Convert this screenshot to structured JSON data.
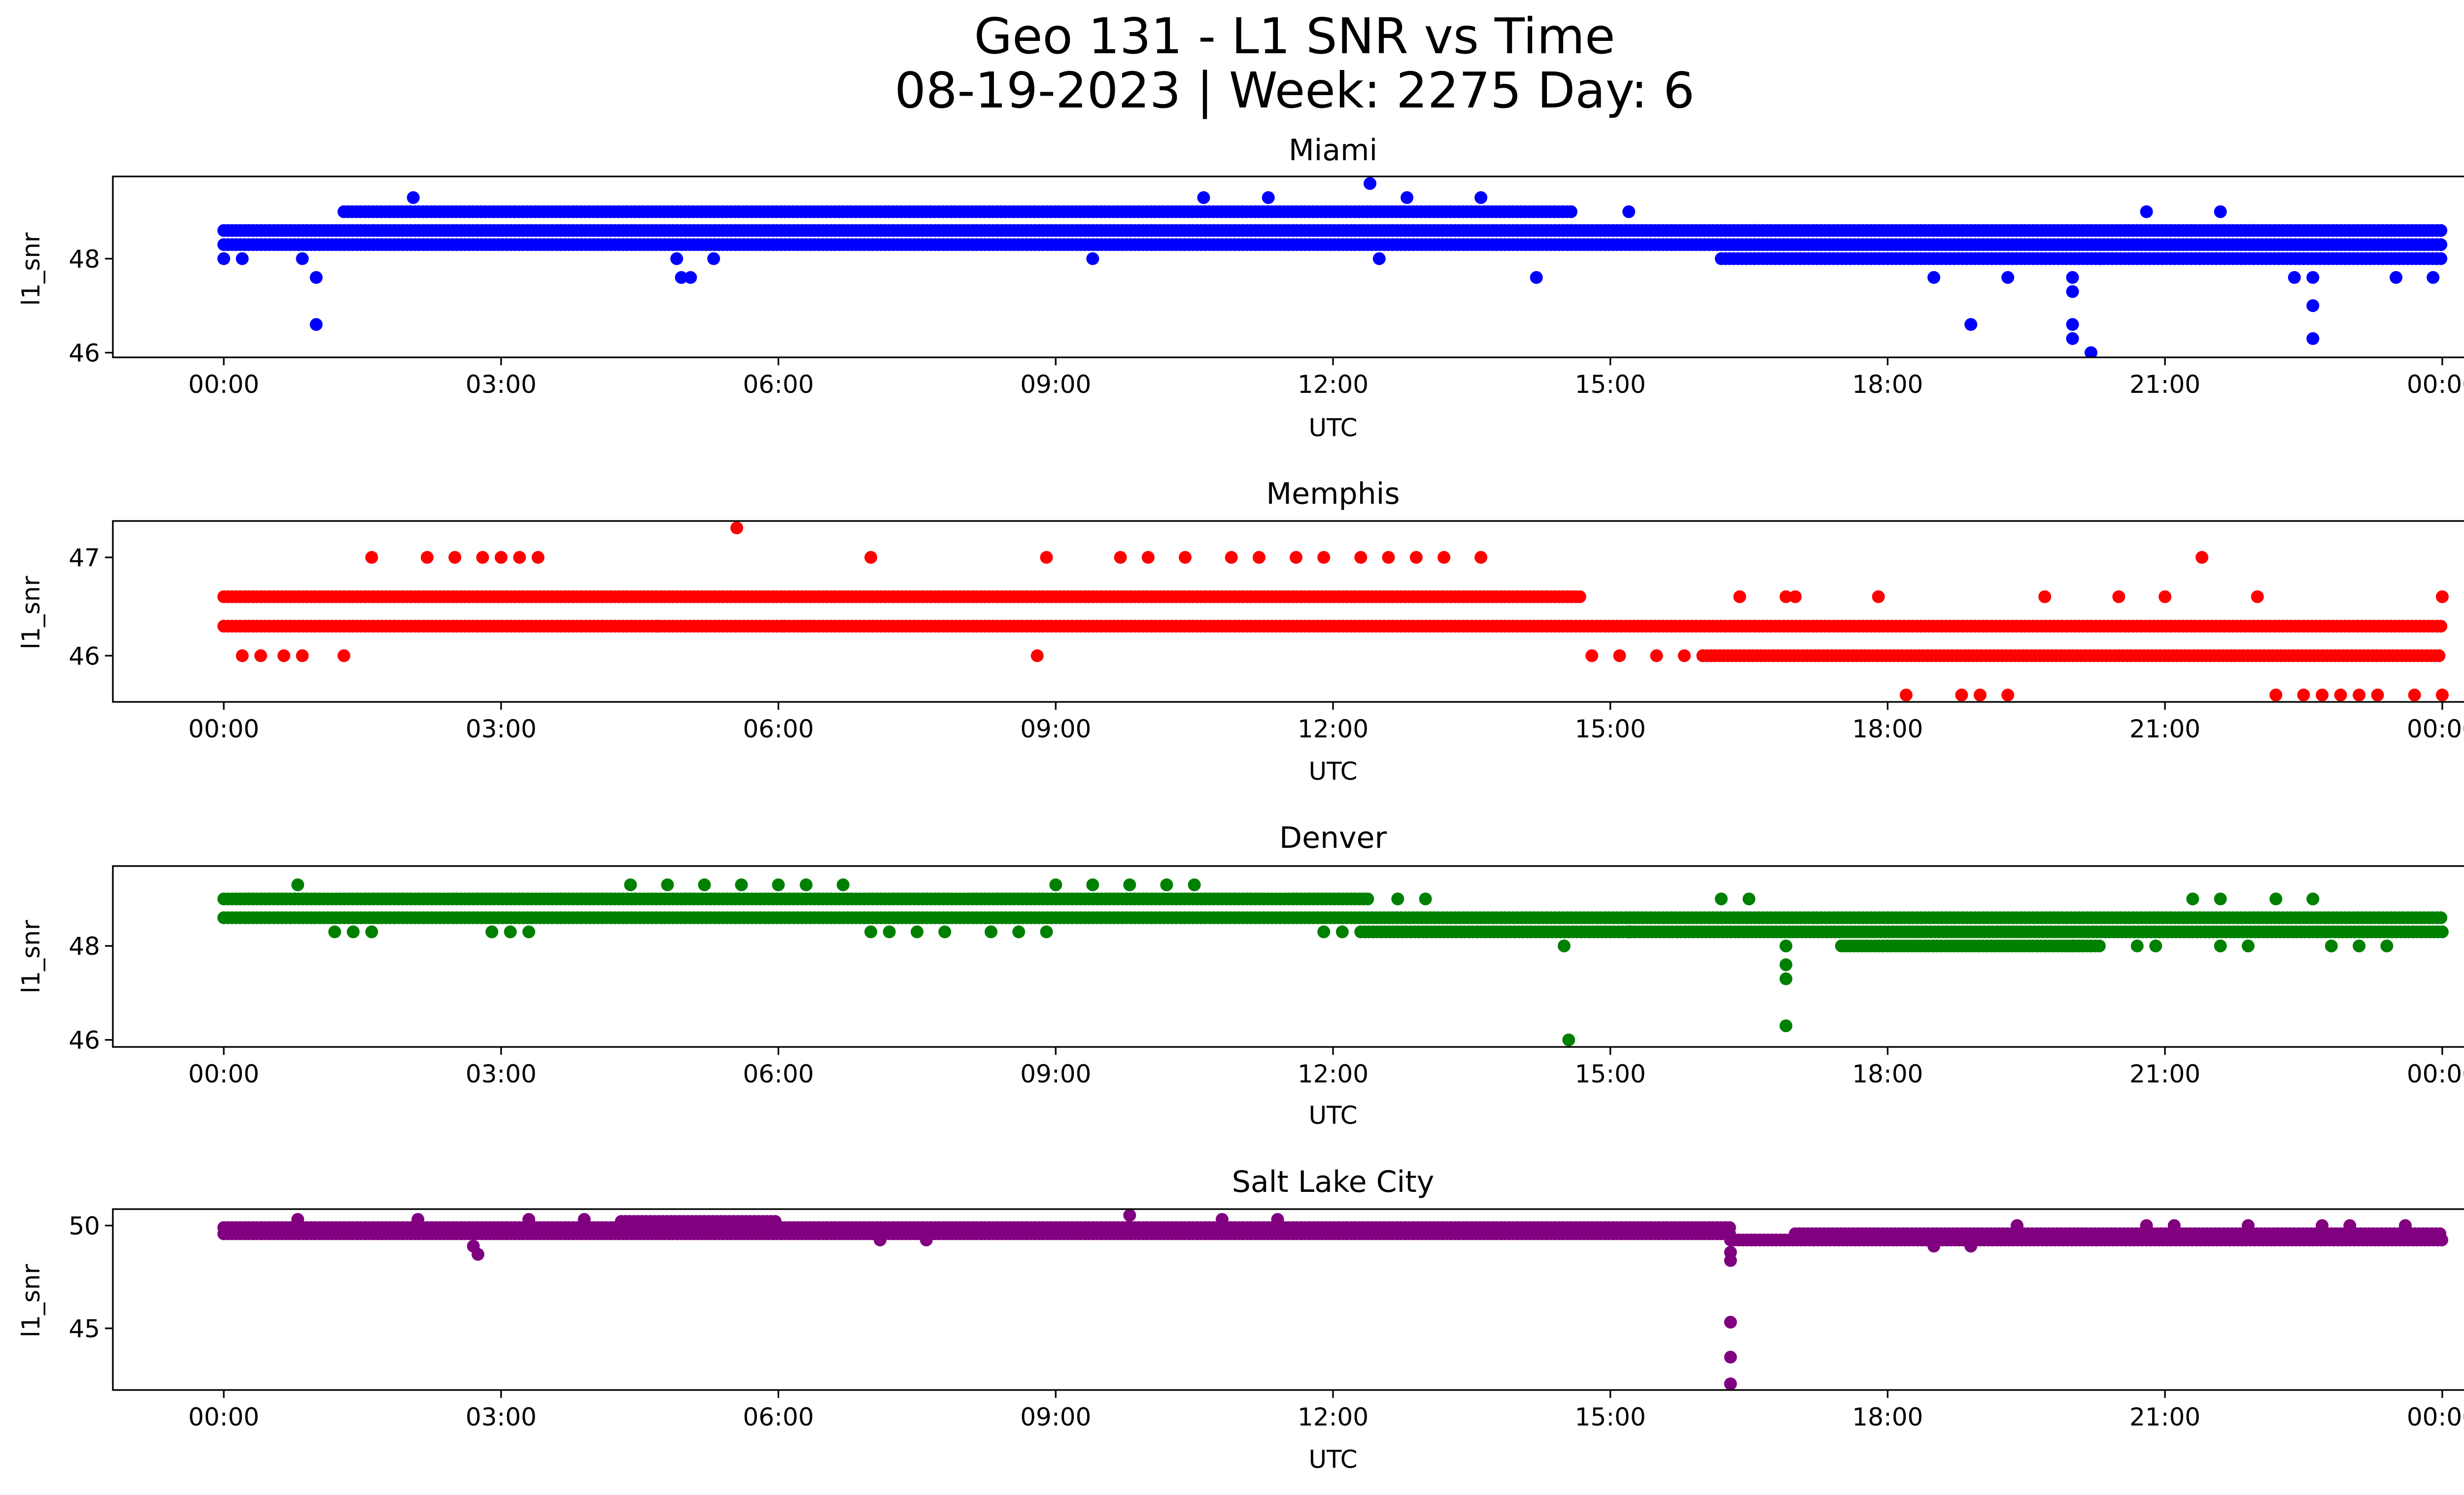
{
  "figure": {
    "title_line1": "Geo 131 - L1 SNR vs Time",
    "title_line2": "08-19-2023 | Week: 2275 Day: 6"
  },
  "chart_data": [
    {
      "type": "scatter",
      "title": "Miami",
      "xlabel": "UTC",
      "ylabel": "l1_snr",
      "color": "#0000ff",
      "x_unit": "hours UTC",
      "xlim": [
        -1.2,
        25.2
      ],
      "ylim": [
        45.9,
        49.75
      ],
      "xticks": [
        "00:00",
        "03:00",
        "06:00",
        "09:00",
        "12:00",
        "15:00",
        "18:00",
        "21:00",
        "00:00"
      ],
      "yticks": [
        46,
        48
      ],
      "bands": [
        {
          "y": 48.6,
          "from": 0.0,
          "to": 24.0
        },
        {
          "y": 48.3,
          "from": 0.0,
          "to": 24.0
        },
        {
          "y": 49.0,
          "from": 1.3,
          "to": 14.6
        },
        {
          "y": 48.0,
          "from": 16.2,
          "to": 24.0
        }
      ],
      "points": [
        {
          "x": 0.0,
          "y": 48.0
        },
        {
          "x": 0.2,
          "y": 48.0
        },
        {
          "x": 0.85,
          "y": 48.0
        },
        {
          "x": 1.0,
          "y": 47.6
        },
        {
          "x": 1.0,
          "y": 46.6
        },
        {
          "x": 2.05,
          "y": 49.3
        },
        {
          "x": 4.95,
          "y": 47.6
        },
        {
          "x": 5.05,
          "y": 47.6
        },
        {
          "x": 4.9,
          "y": 48.0
        },
        {
          "x": 5.3,
          "y": 48.0
        },
        {
          "x": 9.4,
          "y": 48.0
        },
        {
          "x": 10.6,
          "y": 49.3
        },
        {
          "x": 11.3,
          "y": 49.3
        },
        {
          "x": 12.4,
          "y": 49.6
        },
        {
          "x": 12.5,
          "y": 48.0
        },
        {
          "x": 12.8,
          "y": 49.3
        },
        {
          "x": 13.6,
          "y": 49.3
        },
        {
          "x": 14.2,
          "y": 47.6
        },
        {
          "x": 15.2,
          "y": 49.0
        },
        {
          "x": 18.5,
          "y": 47.6
        },
        {
          "x": 18.9,
          "y": 46.6
        },
        {
          "x": 19.3,
          "y": 47.6
        },
        {
          "x": 20.0,
          "y": 47.6
        },
        {
          "x": 20.0,
          "y": 47.3
        },
        {
          "x": 20.0,
          "y": 46.6
        },
        {
          "x": 20.0,
          "y": 46.3
        },
        {
          "x": 20.2,
          "y": 46.0
        },
        {
          "x": 20.3,
          "y": 48.0
        },
        {
          "x": 20.8,
          "y": 49.0
        },
        {
          "x": 21.6,
          "y": 49.0
        },
        {
          "x": 22.4,
          "y": 47.6
        },
        {
          "x": 22.6,
          "y": 47.6
        },
        {
          "x": 22.6,
          "y": 47.0
        },
        {
          "x": 22.6,
          "y": 46.3
        },
        {
          "x": 23.5,
          "y": 47.6
        },
        {
          "x": 23.9,
          "y": 47.6
        }
      ]
    },
    {
      "type": "scatter",
      "title": "Memphis",
      "xlabel": "UTC",
      "ylabel": "l1_snr",
      "color": "#ff0000",
      "x_unit": "hours UTC",
      "xlim": [
        -1.2,
        25.2
      ],
      "ylim": [
        45.53,
        47.37
      ],
      "xticks": [
        "00:00",
        "03:00",
        "06:00",
        "09:00",
        "12:00",
        "15:00",
        "18:00",
        "21:00",
        "00:00"
      ],
      "yticks": [
        46,
        47
      ],
      "bands": [
        {
          "y": 46.6,
          "from": 0.0,
          "to": 14.7
        },
        {
          "y": 46.3,
          "from": 0.0,
          "to": 24.0
        },
        {
          "y": 46.0,
          "from": 16.0,
          "to": 24.0
        }
      ],
      "points": [
        {
          "x": 0.2,
          "y": 46.0
        },
        {
          "x": 0.4,
          "y": 46.0
        },
        {
          "x": 0.65,
          "y": 46.0
        },
        {
          "x": 0.85,
          "y": 46.0
        },
        {
          "x": 1.3,
          "y": 46.0
        },
        {
          "x": 1.6,
          "y": 47.0
        },
        {
          "x": 2.2,
          "y": 47.0
        },
        {
          "x": 2.5,
          "y": 47.0
        },
        {
          "x": 2.8,
          "y": 47.0
        },
        {
          "x": 3.0,
          "y": 47.0
        },
        {
          "x": 3.2,
          "y": 47.0
        },
        {
          "x": 3.4,
          "y": 47.0
        },
        {
          "x": 4.7,
          "y": 46.3
        },
        {
          "x": 5.55,
          "y": 47.3
        },
        {
          "x": 6.05,
          "y": 46.3
        },
        {
          "x": 6.3,
          "y": 46.3
        },
        {
          "x": 7.0,
          "y": 47.0
        },
        {
          "x": 8.8,
          "y": 46.0
        },
        {
          "x": 8.9,
          "y": 47.0
        },
        {
          "x": 9.7,
          "y": 47.0
        },
        {
          "x": 10.0,
          "y": 47.0
        },
        {
          "x": 10.4,
          "y": 47.0
        },
        {
          "x": 10.9,
          "y": 47.0
        },
        {
          "x": 11.2,
          "y": 47.0
        },
        {
          "x": 11.6,
          "y": 47.0
        },
        {
          "x": 11.9,
          "y": 47.0
        },
        {
          "x": 12.3,
          "y": 47.0
        },
        {
          "x": 12.6,
          "y": 47.0
        },
        {
          "x": 12.9,
          "y": 47.0
        },
        {
          "x": 13.2,
          "y": 47.0
        },
        {
          "x": 13.6,
          "y": 47.0
        },
        {
          "x": 14.8,
          "y": 46.0
        },
        {
          "x": 15.1,
          "y": 46.0
        },
        {
          "x": 15.5,
          "y": 46.0
        },
        {
          "x": 15.8,
          "y": 46.0
        },
        {
          "x": 16.4,
          "y": 46.6
        },
        {
          "x": 16.9,
          "y": 46.6
        },
        {
          "x": 17.0,
          "y": 46.6
        },
        {
          "x": 17.9,
          "y": 46.6
        },
        {
          "x": 18.2,
          "y": 45.6
        },
        {
          "x": 18.8,
          "y": 45.6
        },
        {
          "x": 19.0,
          "y": 45.6
        },
        {
          "x": 19.3,
          "y": 45.6
        },
        {
          "x": 19.7,
          "y": 46.6
        },
        {
          "x": 20.5,
          "y": 46.6
        },
        {
          "x": 21.0,
          "y": 46.6
        },
        {
          "x": 21.4,
          "y": 47.0
        },
        {
          "x": 22.0,
          "y": 46.6
        },
        {
          "x": 22.2,
          "y": 45.6
        },
        {
          "x": 22.5,
          "y": 45.6
        },
        {
          "x": 22.7,
          "y": 45.6
        },
        {
          "x": 22.9,
          "y": 45.6
        },
        {
          "x": 23.1,
          "y": 45.6
        },
        {
          "x": 23.3,
          "y": 45.6
        },
        {
          "x": 23.7,
          "y": 45.6
        },
        {
          "x": 24.0,
          "y": 45.6
        },
        {
          "x": 24.0,
          "y": 46.6
        }
      ]
    },
    {
      "type": "scatter",
      "title": "Denver",
      "xlabel": "UTC",
      "ylabel": "l1_snr",
      "color": "#008000",
      "x_unit": "hours UTC",
      "xlim": [
        -1.2,
        25.2
      ],
      "ylim": [
        45.85,
        49.7
      ],
      "xticks": [
        "00:00",
        "03:00",
        "06:00",
        "09:00",
        "12:00",
        "15:00",
        "18:00",
        "21:00",
        "00:00"
      ],
      "yticks": [
        46,
        48
      ],
      "bands": [
        {
          "y": 49.0,
          "from": 0.0,
          "to": 12.4
        },
        {
          "y": 48.6,
          "from": 0.0,
          "to": 24.0
        },
        {
          "y": 48.3,
          "from": 12.3,
          "to": 24.0
        },
        {
          "y": 48.0,
          "from": 17.5,
          "to": 20.3
        }
      ],
      "points": [
        {
          "x": 0.8,
          "y": 49.3
        },
        {
          "x": 1.2,
          "y": 48.3
        },
        {
          "x": 1.4,
          "y": 48.3
        },
        {
          "x": 1.6,
          "y": 48.3
        },
        {
          "x": 2.9,
          "y": 48.3
        },
        {
          "x": 3.1,
          "y": 48.3
        },
        {
          "x": 3.3,
          "y": 48.3
        },
        {
          "x": 4.4,
          "y": 49.3
        },
        {
          "x": 4.8,
          "y": 49.3
        },
        {
          "x": 5.2,
          "y": 49.3
        },
        {
          "x": 5.6,
          "y": 49.3
        },
        {
          "x": 6.0,
          "y": 49.3
        },
        {
          "x": 6.3,
          "y": 49.3
        },
        {
          "x": 6.7,
          "y": 49.3
        },
        {
          "x": 7.0,
          "y": 48.3
        },
        {
          "x": 7.2,
          "y": 48.3
        },
        {
          "x": 7.5,
          "y": 48.3
        },
        {
          "x": 7.8,
          "y": 48.3
        },
        {
          "x": 8.3,
          "y": 48.3
        },
        {
          "x": 8.6,
          "y": 48.3
        },
        {
          "x": 8.9,
          "y": 48.3
        },
        {
          "x": 9.0,
          "y": 49.3
        },
        {
          "x": 9.4,
          "y": 49.3
        },
        {
          "x": 9.8,
          "y": 49.3
        },
        {
          "x": 10.2,
          "y": 49.3
        },
        {
          "x": 10.5,
          "y": 49.3
        },
        {
          "x": 11.9,
          "y": 48.3
        },
        {
          "x": 12.1,
          "y": 48.3
        },
        {
          "x": 12.7,
          "y": 49.0
        },
        {
          "x": 13.0,
          "y": 49.0
        },
        {
          "x": 14.5,
          "y": 48.0
        },
        {
          "x": 14.55,
          "y": 46.0
        },
        {
          "x": 15.2,
          "y": 48.3
        },
        {
          "x": 16.2,
          "y": 49.0
        },
        {
          "x": 16.5,
          "y": 49.0
        },
        {
          "x": 16.9,
          "y": 48.0
        },
        {
          "x": 16.9,
          "y": 47.6
        },
        {
          "x": 16.9,
          "y": 47.3
        },
        {
          "x": 16.9,
          "y": 46.3
        },
        {
          "x": 18.0,
          "y": 48.6
        },
        {
          "x": 20.0,
          "y": 48.0
        },
        {
          "x": 20.7,
          "y": 48.0
        },
        {
          "x": 20.9,
          "y": 48.0
        },
        {
          "x": 21.3,
          "y": 49.0
        },
        {
          "x": 21.6,
          "y": 49.0
        },
        {
          "x": 21.6,
          "y": 48.0
        },
        {
          "x": 21.9,
          "y": 48.0
        },
        {
          "x": 22.2,
          "y": 49.0
        },
        {
          "x": 22.6,
          "y": 49.0
        },
        {
          "x": 22.8,
          "y": 48.0
        },
        {
          "x": 23.1,
          "y": 48.0
        },
        {
          "x": 23.4,
          "y": 48.0
        }
      ]
    },
    {
      "type": "scatter",
      "title": "Salt Lake City",
      "xlabel": "UTC",
      "ylabel": "l1_snr",
      "color": "#800080",
      "x_unit": "hours UTC",
      "xlim": [
        -1.2,
        25.2
      ],
      "ylim": [
        42.0,
        50.8
      ],
      "xticks": [
        "00:00",
        "03:00",
        "06:00",
        "09:00",
        "12:00",
        "15:00",
        "18:00",
        "21:00",
        "00:00"
      ],
      "yticks": [
        45,
        50
      ],
      "bands": [
        {
          "y": 49.6,
          "from": 0.0,
          "to": 16.3
        },
        {
          "y": 49.9,
          "from": 0.0,
          "to": 16.3
        },
        {
          "y": 50.2,
          "from": 4.3,
          "to": 6.0
        },
        {
          "y": 49.3,
          "from": 16.3,
          "to": 24.0
        },
        {
          "y": 49.6,
          "from": 17.0,
          "to": 24.0
        }
      ],
      "points": [
        {
          "x": 0.8,
          "y": 50.3
        },
        {
          "x": 2.1,
          "y": 50.3
        },
        {
          "x": 2.7,
          "y": 49.0
        },
        {
          "x": 2.75,
          "y": 48.6
        },
        {
          "x": 3.3,
          "y": 50.3
        },
        {
          "x": 3.9,
          "y": 50.3
        },
        {
          "x": 7.1,
          "y": 49.3
        },
        {
          "x": 7.6,
          "y": 49.3
        },
        {
          "x": 9.8,
          "y": 50.5
        },
        {
          "x": 10.8,
          "y": 50.3
        },
        {
          "x": 11.4,
          "y": 50.3
        },
        {
          "x": 16.3,
          "y": 48.7
        },
        {
          "x": 16.3,
          "y": 48.3
        },
        {
          "x": 16.3,
          "y": 45.3
        },
        {
          "x": 16.3,
          "y": 43.6
        },
        {
          "x": 16.3,
          "y": 42.3
        },
        {
          "x": 18.5,
          "y": 49.0
        },
        {
          "x": 18.9,
          "y": 49.0
        },
        {
          "x": 19.4,
          "y": 50.0
        },
        {
          "x": 20.8,
          "y": 50.0
        },
        {
          "x": 21.1,
          "y": 50.0
        },
        {
          "x": 21.9,
          "y": 50.0
        },
        {
          "x": 22.7,
          "y": 50.0
        },
        {
          "x": 23.0,
          "y": 50.0
        },
        {
          "x": 23.6,
          "y": 50.0
        }
      ]
    }
  ]
}
